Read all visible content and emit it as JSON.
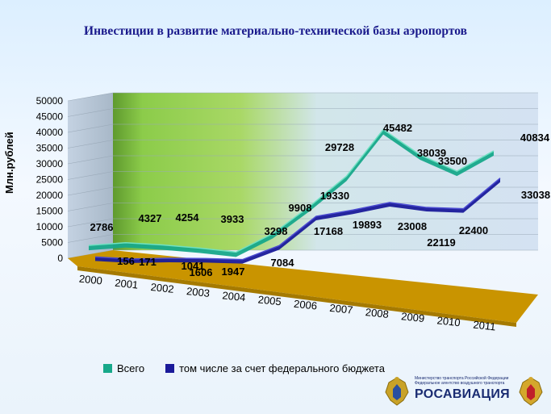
{
  "title": "Инвестиции в развитие материально-технической базы аэропортов",
  "colors": {
    "series_total": "#17a88a",
    "series_federal": "#1a1a9a",
    "floor": "#c99400",
    "wall_green": "#8ccc4a",
    "wall_blue": "#cfe0f3"
  },
  "chart_data": {
    "type": "line",
    "title": "Инвестиции в развитие материально-технической базы аэропортов",
    "xlabel": "",
    "ylabel": "Млн.рублей",
    "ylim": [
      0,
      50000
    ],
    "y_ticks": [
      "0",
      "5000",
      "10000",
      "15000",
      "20000",
      "25000",
      "30000",
      "35000",
      "40000",
      "45000",
      "50000"
    ],
    "categories": [
      "2000",
      "2001",
      "2002",
      "2003",
      "2004",
      "2005",
      "2006",
      "2007",
      "2008",
      "2009",
      "2010",
      "2011"
    ],
    "series": [
      {
        "name": "Всего",
        "values": [
          2786,
          4327,
          4254,
          3933,
          3298,
          9908,
          19330,
          29728,
          45482,
          38039,
          33500,
          40834
        ],
        "labels": [
          "2786",
          "4327",
          "4254",
          "3933",
          "3298",
          "9908",
          "19330",
          "29728",
          "45482",
          "38039",
          "33500",
          "40834"
        ]
      },
      {
        "name": "том числе за счет федерального бюджета",
        "values": [
          156,
          171,
          1041,
          1606,
          1947,
          7084,
          17168,
          19893,
          23008,
          22119,
          22400,
          33038
        ],
        "labels": [
          "156",
          "171",
          "1041",
          "1606",
          "1947",
          "7084",
          "17168",
          "19893",
          "23008",
          "22119",
          "22400",
          "33038"
        ]
      }
    ],
    "grid": true,
    "legend": "bottom",
    "view": "3d"
  },
  "legend": {
    "item_total": "Всего",
    "item_federal": "том числе за счет федерального бюджета"
  },
  "logo": {
    "org_text": "Министерство транспорта Российской Федерации Федеральное агентство воздушного транспорта",
    "name": "РОСАВИАЦИЯ",
    "emblem_left": "coat-of-arms-icon",
    "emblem_right": "coat-of-arms-icon"
  }
}
